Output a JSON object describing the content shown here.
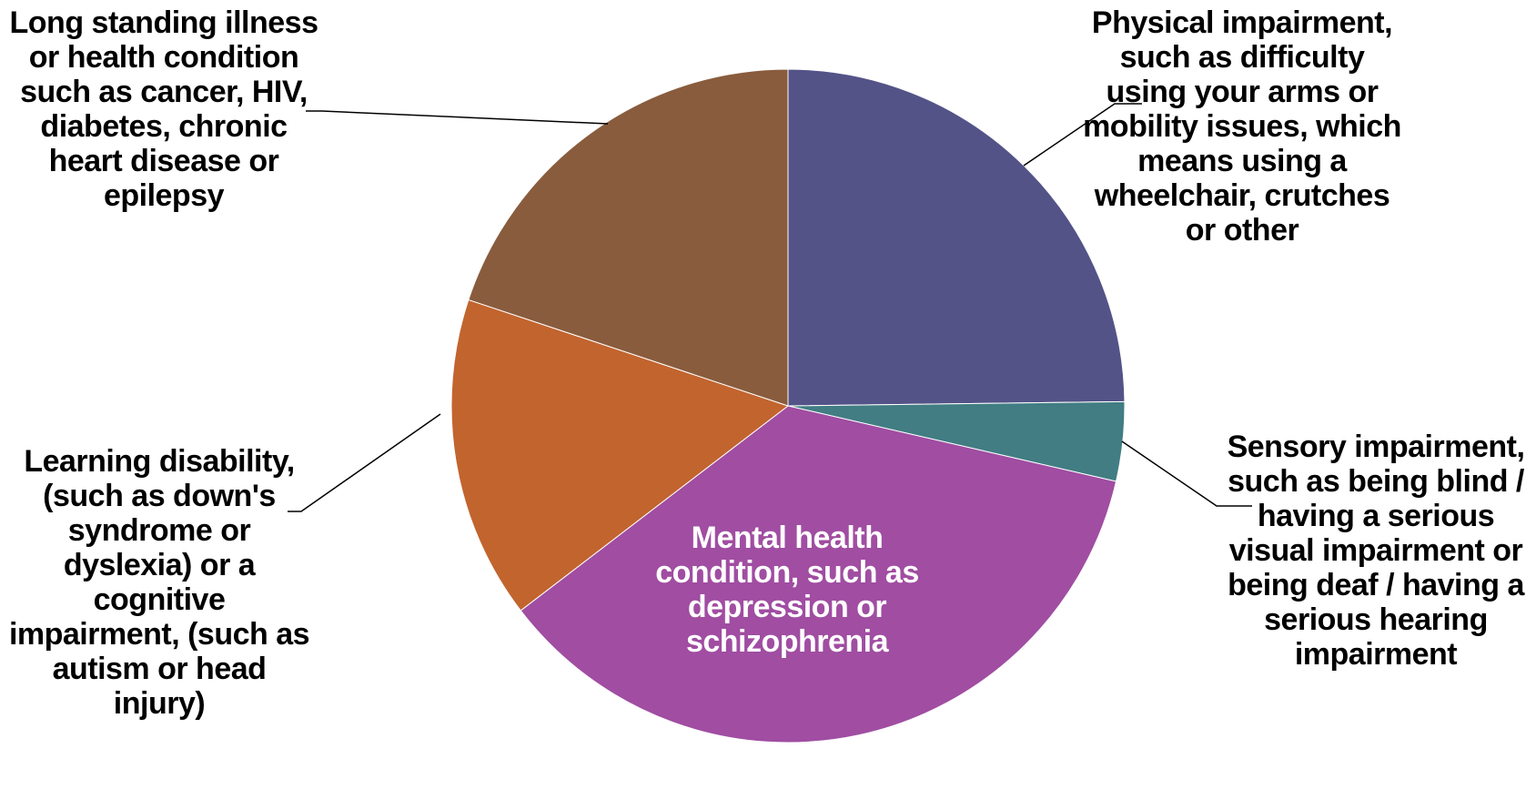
{
  "chart_data": {
    "type": "pie",
    "start_angle_deg": 0,
    "direction": "clockwise",
    "slices": [
      {
        "label": "Physical impairment, such as difficulty using your arms or mobility issues, which means using a wheelchair, crutches or other",
        "value": 24.8,
        "color": "#535388"
      },
      {
        "label": "Sensory impairment, such as being blind / having a serious visual impairment or being deaf / having a serious hearing impairment",
        "value": 3.8,
        "color": "#417d83"
      },
      {
        "label": "Mental health condition, such as depression or schizophrenia",
        "value": 36.0,
        "color": "#a04da2"
      },
      {
        "label": "Learning disability, (such as down's syndrome or dyslexia) or a cognitive impairment, (such as autism or head injury)",
        "value": 15.5,
        "color": "#c2642e"
      },
      {
        "label": "Long standing illness or health condition such as cancer, HIV, diabetes, chronic heart disease or epilepsy",
        "value": 19.9,
        "color": "#895c3d"
      }
    ]
  }
}
